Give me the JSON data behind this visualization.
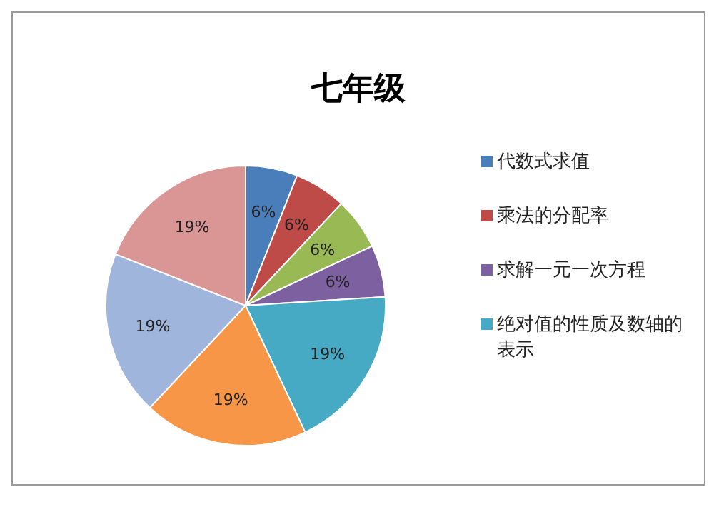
{
  "chart_data": {
    "type": "pie",
    "title": "七年级",
    "categories": [
      "代数式求值",
      "乘法的分配率",
      null,
      "求解一元一次方程",
      "绝对值的性质及数轴的表示",
      null,
      null,
      null
    ],
    "values": [
      6,
      6,
      6,
      6,
      19,
      19,
      19,
      19
    ],
    "colors": [
      "#4a7ebb",
      "#be4b48",
      "#98b954",
      "#7d60a0",
      "#46aac5",
      "#f79646",
      "#a0b5db",
      "#d99694"
    ],
    "value_labels": [
      "6%",
      "6%",
      "6%",
      "6%",
      "19%",
      "19%",
      "19%",
      "19%"
    ],
    "legend": "right"
  }
}
